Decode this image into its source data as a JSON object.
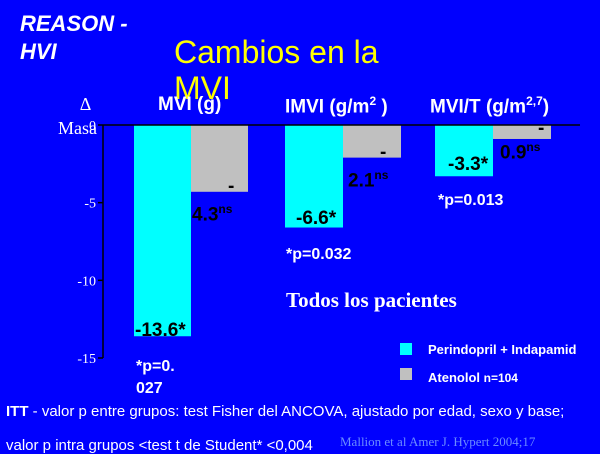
{
  "header": {
    "study_line1": "REASON -",
    "study_line2": "HVI",
    "title_line1": "Cambios en la",
    "title_line2": "MVI"
  },
  "axis": {
    "delta": "Δ",
    "masa": "Masa"
  },
  "groups": [
    {
      "label": "MVI (g)",
      "pvalue": "*p=0.\n027"
    },
    {
      "label": "IMVI (g/m² )",
      "pvalue": "*p=0.032"
    },
    {
      "label": "MVI/T (g/m²˒⁷)",
      "pvalue": "*p=0.013"
    }
  ],
  "annotation": "Todos los pacientes",
  "legend": [
    {
      "label": "Perindopril + Indapamid",
      "color": "#00ffff"
    },
    {
      "label": "Atenolol",
      "suffix": "n=104",
      "color": "#c0c0c0"
    }
  ],
  "footer": {
    "itt_bold": "ITT",
    "itt_text": " -  valor p entre grupos: test Fisher del ANCOVA, ajustado por edad, sexo y base;",
    "line3": "valor p intra grupos <test t de Student* <0,004",
    "citation": "Mallion et al Amer J. Hypert 2004;17"
  },
  "chart_data": {
    "type": "bar",
    "categories": [
      "MVI (g)",
      "IMVI (g/m² )",
      "MVI/T (g/m²˒⁷)"
    ],
    "series": [
      {
        "name": "Perindopril + Indapamid",
        "color": "#00ffff",
        "values": [
          -13.6,
          -6.6,
          -3.3
        ],
        "labels": [
          "-13.6*",
          "-6.6*",
          "-3.3*"
        ]
      },
      {
        "name": "Atenolol",
        "color": "#c0c0c0",
        "values": [
          -4.3,
          -2.1,
          -0.9
        ],
        "labels": [
          "-\n4.3ns",
          "-\n2.1ns",
          "-\n0.9ns"
        ]
      }
    ],
    "ylim": [
      -15,
      0
    ],
    "yticks": [
      0,
      -5,
      -10,
      -15
    ],
    "ytick_labels": [
      "0",
      "-5",
      "-10",
      "-15"
    ]
  }
}
